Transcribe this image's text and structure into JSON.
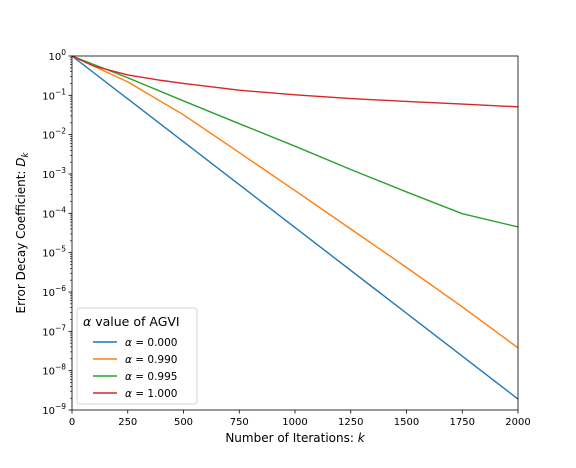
{
  "chart_data": {
    "type": "line",
    "title": "",
    "xlabel_text": "Number of Iterations: ",
    "xlabel_var": "k",
    "ylabel_text": "Error Decay Coefficient: ",
    "ylabel_var": "D",
    "ylabel_sub": "k",
    "xlim": [
      0,
      2000
    ],
    "ylim": [
      1e-09,
      1
    ],
    "yscale": "log",
    "grid": false,
    "xticks": [
      0,
      250,
      500,
      750,
      1000,
      1250,
      1500,
      1750,
      2000
    ],
    "xtick_labels": [
      "0",
      "250",
      "500",
      "750",
      "1000",
      "1250",
      "1500",
      "1750",
      "2000"
    ],
    "yticks": [
      1e-09,
      1e-08,
      1e-07,
      1e-06,
      1e-05,
      0.0001,
      0.001,
      0.01,
      0.1,
      1
    ],
    "ytick_exponents": [
      "−9",
      "−8",
      "−7",
      "−6",
      "−5",
      "−4",
      "−3",
      "−2",
      "−1",
      "0"
    ],
    "legend": {
      "placement": "lower-left",
      "title_var": "α",
      "title_text": " value of AGVI",
      "entries": [
        {
          "var": "α",
          "text": " = 0.000",
          "color": "#1f77b4"
        },
        {
          "var": "α",
          "text": " = 0.990",
          "color": "#ff7f0e"
        },
        {
          "var": "α",
          "text": " = 0.995",
          "color": "#2ca02c"
        },
        {
          "var": "α",
          "text": " = 1.000",
          "color": "#d62728"
        }
      ]
    },
    "series": [
      {
        "color": "#1f77b4",
        "x": [
          0,
          2000
        ],
        "y": [
          1,
          1.9e-09
        ]
      },
      {
        "color": "#ff7f0e",
        "x": [
          0,
          250,
          500,
          750,
          1000,
          1250,
          1500,
          1750,
          2000
        ],
        "y": [
          1,
          0.22,
          0.032,
          0.0035,
          0.00038,
          4e-05,
          4.2e-06,
          4.2e-07,
          3.8e-08
        ]
      },
      {
        "color": "#2ca02c",
        "x": [
          0,
          250,
          500,
          750,
          1000,
          1250,
          1500,
          1750,
          2000
        ],
        "y": [
          1,
          0.28,
          0.072,
          0.019,
          0.0051,
          0.0013,
          0.00035,
          9.8e-05,
          4.5e-05
        ]
      },
      {
        "color": "#d62728",
        "x": [
          0,
          100,
          250,
          400,
          500,
          750,
          1000,
          1250,
          1500,
          1750,
          2000
        ],
        "y": [
          1,
          0.55,
          0.33,
          0.24,
          0.2,
          0.135,
          0.103,
          0.083,
          0.07,
          0.06,
          0.051
        ]
      }
    ]
  }
}
